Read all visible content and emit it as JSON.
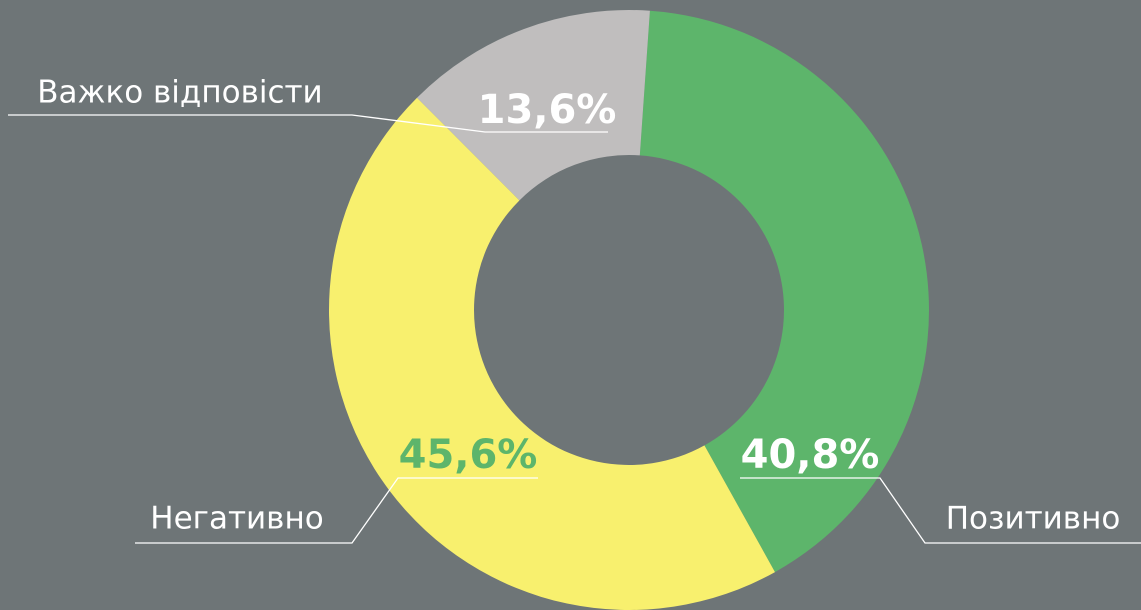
{
  "chart_data": {
    "type": "donut",
    "categories": [
      "Позитивно",
      "Негативно",
      "Важко відповісти"
    ],
    "values": [
      40.8,
      45.6,
      13.6
    ],
    "value_labels": [
      "40,8%",
      "45,6%",
      "13,6%"
    ],
    "colors": [
      "#5db56b",
      "#f8f06e",
      "#c0bebe"
    ],
    "label_colors": [
      "#ffffff",
      "#5db56b",
      "#ffffff"
    ],
    "background": "#6e7577"
  }
}
